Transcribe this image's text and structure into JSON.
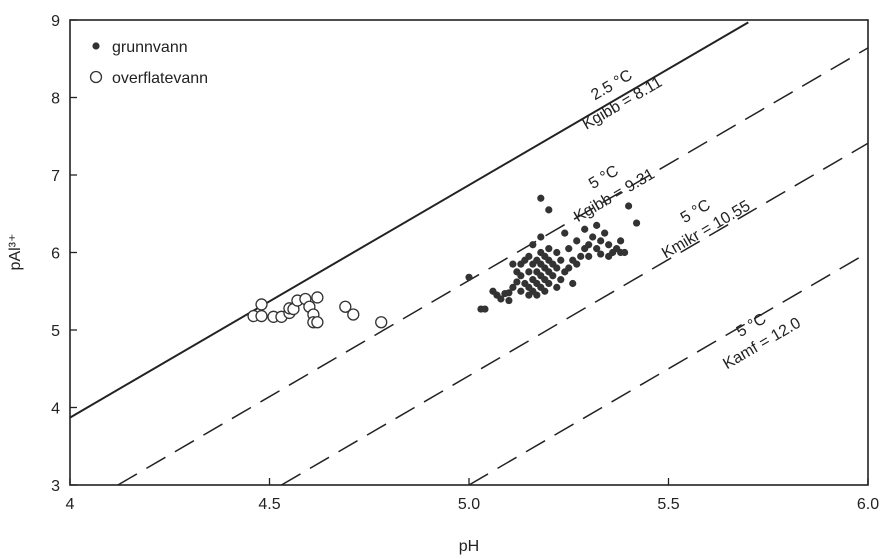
{
  "chart_data": {
    "type": "scatter",
    "xlabel": "pH",
    "ylabel": "pAl³⁺",
    "xlim": [
      4.0,
      6.0
    ],
    "ylim": [
      3,
      9
    ],
    "xticks": [
      {
        "v": 4.0,
        "label": "4"
      },
      {
        "v": 4.5,
        "label": "4.5"
      },
      {
        "v": 5.0,
        "label": "5.0"
      },
      {
        "v": 5.5,
        "label": "5.5"
      },
      {
        "v": 6.0,
        "label": "6.0"
      }
    ],
    "yticks": [
      {
        "v": 3,
        "label": "3"
      },
      {
        "v": 4,
        "label": "4"
      },
      {
        "v": 5,
        "label": "5"
      },
      {
        "v": 6,
        "label": "6"
      },
      {
        "v": 7,
        "label": "7"
      },
      {
        "v": 8,
        "label": "8"
      },
      {
        "v": 9,
        "label": "9"
      }
    ],
    "legend": {
      "position": "top-left",
      "items": [
        {
          "label": "grunnvann",
          "marker": "filled-circle"
        },
        {
          "label": "overflatevann",
          "marker": "open-circle"
        }
      ]
    },
    "reference_lines": [
      {
        "style": "solid",
        "slope": 3,
        "x": [
          4.0,
          5.7
        ],
        "y": [
          3.87,
          8.97
        ],
        "label1": "2.5 °C",
        "label2": "Kgibb = 8.11",
        "lx": 5.37,
        "ly": 8.05
      },
      {
        "style": "dashed",
        "slope": 3,
        "x": [
          4.12,
          6.0
        ],
        "y": [
          3.0,
          8.64
        ],
        "label1": "5 °C",
        "label2": "Kgibb = 9.31",
        "lx": 5.35,
        "ly": 6.86
      },
      {
        "style": "dashed",
        "slope": 3,
        "x": [
          4.53,
          6.0
        ],
        "y": [
          3.0,
          7.41
        ],
        "label1": "5 °C",
        "label2": "Kmikr = 10.55",
        "lx": 5.58,
        "ly": 6.42
      },
      {
        "style": "dashed",
        "slope": 3,
        "x": [
          5.0,
          6.0
        ],
        "y": [
          3.0,
          6.0
        ],
        "label1": "5 °C",
        "label2": "Kamf = 12.0",
        "lx": 5.72,
        "ly": 4.95
      }
    ],
    "series": [
      {
        "name": "grunnvann",
        "marker": "filled-circle",
        "points": [
          [
            5.0,
            5.68
          ],
          [
            5.03,
            5.27
          ],
          [
            5.04,
            5.27
          ],
          [
            5.06,
            5.5
          ],
          [
            5.07,
            5.45
          ],
          [
            5.08,
            5.4
          ],
          [
            5.09,
            5.47
          ],
          [
            5.1,
            5.38
          ],
          [
            5.1,
            5.48
          ],
          [
            5.11,
            5.55
          ],
          [
            5.11,
            5.85
          ],
          [
            5.12,
            5.62
          ],
          [
            5.12,
            5.75
          ],
          [
            5.13,
            5.5
          ],
          [
            5.13,
            5.7
          ],
          [
            5.13,
            5.85
          ],
          [
            5.14,
            5.6
          ],
          [
            5.14,
            5.9
          ],
          [
            5.15,
            5.45
          ],
          [
            5.15,
            5.55
          ],
          [
            5.15,
            5.75
          ],
          [
            5.15,
            5.95
          ],
          [
            5.16,
            5.5
          ],
          [
            5.16,
            5.65
          ],
          [
            5.16,
            5.85
          ],
          [
            5.16,
            6.1
          ],
          [
            5.17,
            5.45
          ],
          [
            5.17,
            5.6
          ],
          [
            5.17,
            5.75
          ],
          [
            5.17,
            5.9
          ],
          [
            5.18,
            5.55
          ],
          [
            5.18,
            5.7
          ],
          [
            5.18,
            5.85
          ],
          [
            5.18,
            6.0
          ],
          [
            5.18,
            6.2
          ],
          [
            5.18,
            6.7
          ],
          [
            5.19,
            5.5
          ],
          [
            5.19,
            5.65
          ],
          [
            5.19,
            5.8
          ],
          [
            5.19,
            5.95
          ],
          [
            5.2,
            5.6
          ],
          [
            5.2,
            5.75
          ],
          [
            5.2,
            5.9
          ],
          [
            5.2,
            6.05
          ],
          [
            5.2,
            6.55
          ],
          [
            5.21,
            5.7
          ],
          [
            5.21,
            5.85
          ],
          [
            5.22,
            5.55
          ],
          [
            5.22,
            5.8
          ],
          [
            5.22,
            6.0
          ],
          [
            5.23,
            5.65
          ],
          [
            5.23,
            5.9
          ],
          [
            5.24,
            5.75
          ],
          [
            5.24,
            6.25
          ],
          [
            5.25,
            5.8
          ],
          [
            5.25,
            6.05
          ],
          [
            5.26,
            5.6
          ],
          [
            5.26,
            5.9
          ],
          [
            5.27,
            5.85
          ],
          [
            5.27,
            6.15
          ],
          [
            5.28,
            5.95
          ],
          [
            5.29,
            6.05
          ],
          [
            5.29,
            6.3
          ],
          [
            5.3,
            5.95
          ],
          [
            5.3,
            6.1
          ],
          [
            5.31,
            6.2
          ],
          [
            5.32,
            6.05
          ],
          [
            5.32,
            6.35
          ],
          [
            5.33,
            6.15
          ],
          [
            5.33,
            5.98
          ],
          [
            5.34,
            6.25
          ],
          [
            5.35,
            6.1
          ],
          [
            5.35,
            5.95
          ],
          [
            5.36,
            6.0
          ],
          [
            5.37,
            6.05
          ],
          [
            5.38,
            6.15
          ],
          [
            5.38,
            6.0
          ],
          [
            5.39,
            6.0
          ],
          [
            5.4,
            6.6
          ],
          [
            5.42,
            6.38
          ]
        ]
      },
      {
        "name": "overflatevann",
        "marker": "open-circle",
        "points": [
          [
            4.46,
            5.18
          ],
          [
            4.48,
            5.18
          ],
          [
            4.48,
            5.33
          ],
          [
            4.51,
            5.17
          ],
          [
            4.53,
            5.17
          ],
          [
            4.55,
            5.22
          ],
          [
            4.55,
            5.28
          ],
          [
            4.56,
            5.27
          ],
          [
            4.57,
            5.38
          ],
          [
            4.59,
            5.4
          ],
          [
            4.6,
            5.3
          ],
          [
            4.61,
            5.2
          ],
          [
            4.61,
            5.1
          ],
          [
            4.62,
            5.1
          ],
          [
            4.62,
            5.42
          ],
          [
            4.69,
            5.3
          ],
          [
            4.71,
            5.2
          ],
          [
            4.78,
            5.1
          ]
        ]
      }
    ]
  }
}
